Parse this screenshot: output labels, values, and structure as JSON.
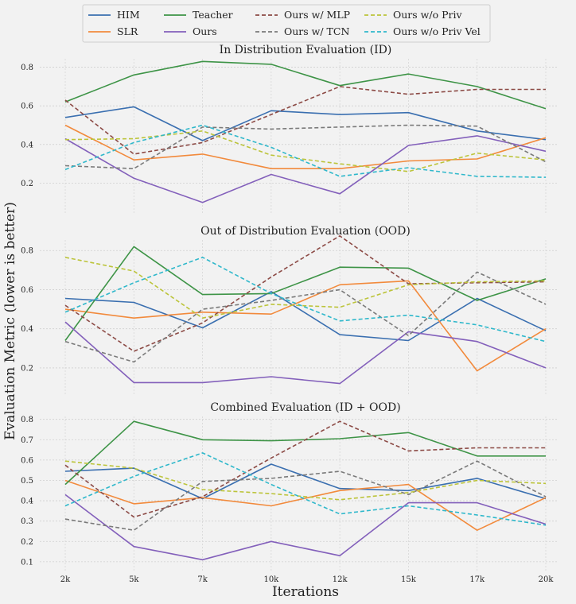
{
  "figure": {
    "ylabel": "Evaluation Metric (lower is better)",
    "xlabel": "Iterations"
  },
  "legend": {
    "position": "top-center",
    "ncol": 4
  },
  "chart_data": [
    {
      "type": "line",
      "title": "In Distribution Evaluation (ID)",
      "categories": [
        "2k",
        "5k",
        "7k",
        "10k",
        "12k",
        "15k",
        "17k",
        "20k"
      ],
      "ylim": [
        0.07,
        0.86
      ],
      "yticks": [
        0.2,
        0.4,
        0.6,
        0.8
      ],
      "grid": true,
      "series": [
        {
          "name": "HIM",
          "color": "#3a6fb0",
          "dashed": false,
          "values": [
            0.54,
            0.595,
            0.42,
            0.575,
            0.555,
            0.565,
            0.47,
            0.425
          ]
        },
        {
          "name": "SLR",
          "color": "#f28a3c",
          "dashed": false,
          "values": [
            0.5,
            0.32,
            0.35,
            0.275,
            0.275,
            0.315,
            0.325,
            0.435
          ]
        },
        {
          "name": "Teacher",
          "color": "#3e9447",
          "dashed": false,
          "values": [
            0.62,
            0.76,
            0.83,
            0.815,
            0.705,
            0.765,
            0.7,
            0.585
          ]
        },
        {
          "name": "Ours",
          "color": "#8360bb",
          "dashed": false,
          "values": [
            0.43,
            0.225,
            0.1,
            0.245,
            0.145,
            0.395,
            0.445,
            0.365
          ]
        },
        {
          "name": "Ours w/ MLP",
          "color": "#8c4a45",
          "dashed": true,
          "values": [
            0.63,
            0.35,
            0.41,
            0.555,
            0.7,
            0.66,
            0.685,
            0.685
          ]
        },
        {
          "name": "Ours w/ TCN",
          "color": "#7a7a7a",
          "dashed": true,
          "values": [
            0.29,
            0.275,
            0.49,
            0.48,
            0.49,
            0.5,
            0.495,
            0.31
          ]
        },
        {
          "name": "Ours w/o Priv",
          "color": "#bcc43a",
          "dashed": true,
          "values": [
            0.425,
            0.43,
            0.47,
            0.345,
            0.3,
            0.26,
            0.355,
            0.32
          ]
        },
        {
          "name": "Ours w/o Priv Vel",
          "color": "#2fb8cb",
          "dashed": true,
          "values": [
            0.27,
            0.41,
            0.5,
            0.385,
            0.235,
            0.28,
            0.235,
            0.23
          ]
        }
      ]
    },
    {
      "type": "line",
      "title": "Out of Distribution Evaluation (OOD)",
      "categories": [
        "2k",
        "5k",
        "7k",
        "10k",
        "12k",
        "15k",
        "17k",
        "20k"
      ],
      "ylim": [
        0.09,
        0.87
      ],
      "yticks": [
        0.2,
        0.4,
        0.6,
        0.8
      ],
      "grid": true,
      "series": [
        {
          "name": "HIM",
          "color": "#3a6fb0",
          "dashed": false,
          "values": [
            0.555,
            0.535,
            0.405,
            0.59,
            0.37,
            0.34,
            0.555,
            0.39
          ]
        },
        {
          "name": "SLR",
          "color": "#f28a3c",
          "dashed": false,
          "values": [
            0.5,
            0.455,
            0.485,
            0.475,
            0.625,
            0.645,
            0.185,
            0.4
          ]
        },
        {
          "name": "Teacher",
          "color": "#3e9447",
          "dashed": false,
          "values": [
            0.34,
            0.82,
            0.575,
            0.58,
            0.715,
            0.71,
            0.545,
            0.655
          ]
        },
        {
          "name": "Ours",
          "color": "#8360bb",
          "dashed": false,
          "values": [
            0.435,
            0.125,
            0.125,
            0.155,
            0.12,
            0.385,
            0.335,
            0.2
          ]
        },
        {
          "name": "Ours w/ MLP",
          "color": "#8c4a45",
          "dashed": true,
          "values": [
            0.52,
            0.285,
            0.43,
            0.665,
            0.875,
            0.63,
            0.635,
            0.64
          ]
        },
        {
          "name": "Ours w/ TCN",
          "color": "#7a7a7a",
          "dashed": true,
          "values": [
            0.335,
            0.23,
            0.5,
            0.545,
            0.6,
            0.365,
            0.69,
            0.525
          ]
        },
        {
          "name": "Ours w/o Priv",
          "color": "#bcc43a",
          "dashed": true,
          "values": [
            0.765,
            0.695,
            0.455,
            0.525,
            0.51,
            0.625,
            0.64,
            0.645
          ]
        },
        {
          "name": "Ours w/o Priv Vel",
          "color": "#2fb8cb",
          "dashed": true,
          "values": [
            0.485,
            0.635,
            0.765,
            0.58,
            0.44,
            0.47,
            0.42,
            0.335
          ]
        }
      ]
    },
    {
      "type": "line",
      "title": "Combined Evaluation (ID + OOD)",
      "categories": [
        "2k",
        "5k",
        "7k",
        "10k",
        "12k",
        "15k",
        "17k",
        "20k"
      ],
      "ylim": [
        0.08,
        0.83
      ],
      "yticks": [
        0.1,
        0.2,
        0.3,
        0.4,
        0.5,
        0.6,
        0.7,
        0.8
      ],
      "grid": true,
      "series": [
        {
          "name": "HIM",
          "color": "#3a6fb0",
          "dashed": false,
          "values": [
            0.545,
            0.56,
            0.41,
            0.58,
            0.46,
            0.45,
            0.51,
            0.41
          ]
        },
        {
          "name": "SLR",
          "color": "#f28a3c",
          "dashed": false,
          "values": [
            0.5,
            0.385,
            0.415,
            0.375,
            0.45,
            0.48,
            0.255,
            0.415
          ]
        },
        {
          "name": "Teacher",
          "color": "#3e9447",
          "dashed": false,
          "values": [
            0.48,
            0.79,
            0.7,
            0.695,
            0.705,
            0.735,
            0.62,
            0.62
          ]
        },
        {
          "name": "Ours",
          "color": "#8360bb",
          "dashed": false,
          "values": [
            0.43,
            0.175,
            0.11,
            0.2,
            0.13,
            0.39,
            0.39,
            0.285
          ]
        },
        {
          "name": "Ours w/ MLP",
          "color": "#8c4a45",
          "dashed": true,
          "values": [
            0.575,
            0.32,
            0.42,
            0.61,
            0.79,
            0.645,
            0.66,
            0.66
          ]
        },
        {
          "name": "Ours w/ TCN",
          "color": "#7a7a7a",
          "dashed": true,
          "values": [
            0.31,
            0.255,
            0.495,
            0.51,
            0.545,
            0.43,
            0.595,
            0.42
          ]
        },
        {
          "name": "Ours w/o Priv",
          "color": "#bcc43a",
          "dashed": true,
          "values": [
            0.595,
            0.56,
            0.455,
            0.435,
            0.405,
            0.44,
            0.5,
            0.485
          ]
        },
        {
          "name": "Ours w/o Priv Vel",
          "color": "#2fb8cb",
          "dashed": true,
          "values": [
            0.375,
            0.52,
            0.635,
            0.48,
            0.335,
            0.375,
            0.33,
            0.28
          ]
        }
      ]
    }
  ]
}
